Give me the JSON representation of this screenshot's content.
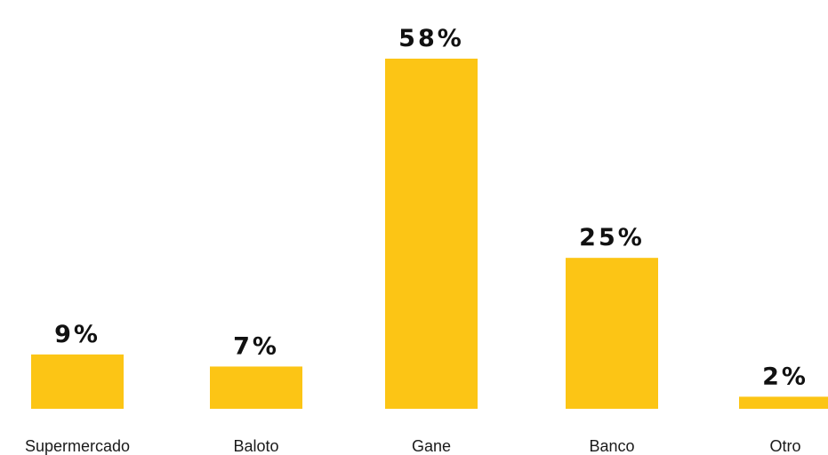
{
  "chart_data": {
    "type": "bar",
    "categories": [
      "Supermercado",
      "Baloto",
      "Gane",
      "Banco",
      "Otro"
    ],
    "values": [
      9,
      7,
      58,
      25,
      2
    ],
    "value_labels": [
      "9%",
      "7%",
      "58%",
      "25%",
      "2%"
    ],
    "title": "",
    "xlabel": "",
    "ylabel": "",
    "ylim": [
      0,
      58
    ],
    "grid": false,
    "legend": "none",
    "bar_color": "#FCC515"
  }
}
